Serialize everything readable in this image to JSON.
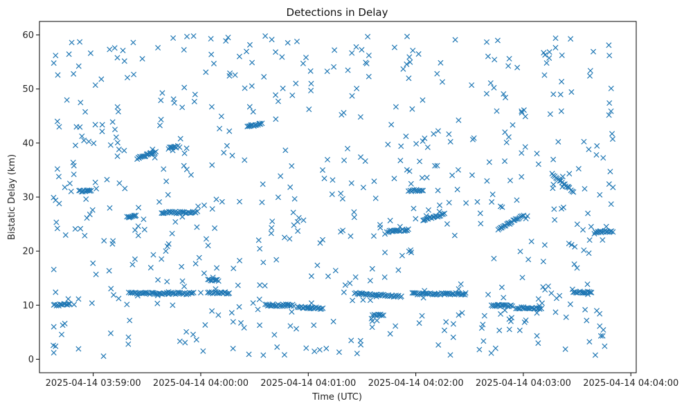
{
  "chart_data": {
    "type": "scatter",
    "title": "Detections in Delay",
    "xlabel": "Time (UTC)",
    "ylabel": "Bistatic Delay (km)",
    "marker": "x",
    "color": "#1f77b4",
    "grid": false,
    "xlim_seconds": [
      -30,
      303
    ],
    "ylim": [
      -2.5,
      62.5
    ],
    "x_ticks": [
      {
        "s": 0,
        "label": "2025-04-14 03:59:00"
      },
      {
        "s": 60,
        "label": "2025-04-14 04:00:00"
      },
      {
        "s": 120,
        "label": "2025-04-14 04:01:00"
      },
      {
        "s": 180,
        "label": "2025-04-14 04:02:00"
      },
      {
        "s": 240,
        "label": "2025-04-14 04:03:00"
      },
      {
        "s": 300,
        "label": "2025-04-14 04:04:00"
      }
    ],
    "y_ticks": [
      0,
      10,
      20,
      30,
      40,
      50,
      60
    ],
    "x_unit": "seconds since 2025-04-14 03:59:00 UTC",
    "x_range_seconds": [
      -23,
      290
    ],
    "points_sample": [
      {
        "x": -22,
        "y": 54.8
      },
      {
        "x": -21,
        "y": 56.2
      },
      {
        "x": -20,
        "y": 44.0
      },
      {
        "x": -19,
        "y": 43.0
      },
      {
        "x": -20,
        "y": 35.2
      },
      {
        "x": -19,
        "y": 28.8
      },
      {
        "x": -20,
        "y": 24.2
      },
      {
        "x": -22,
        "y": 16.6
      },
      {
        "x": -21,
        "y": 12.4
      },
      {
        "x": -22,
        "y": 6.0
      },
      {
        "x": -21,
        "y": 2.4
      },
      {
        "x": -22,
        "y": 1.2
      },
      {
        "x": -12,
        "y": 58.6
      },
      {
        "x": -11,
        "y": 52.8
      },
      {
        "x": -6,
        "y": 31.1
      },
      {
        "x": -3,
        "y": 31.2
      },
      {
        "x": 12,
        "y": 57.6
      },
      {
        "x": 14,
        "y": 45.8
      },
      {
        "x": 20,
        "y": 26.2
      },
      {
        "x": 23,
        "y": 26.6
      },
      {
        "x": 26,
        "y": 37.5
      },
      {
        "x": 30,
        "y": 38.0
      },
      {
        "x": 32,
        "y": 38.2
      },
      {
        "x": 28,
        "y": 12.2
      },
      {
        "x": 36,
        "y": 11.8
      },
      {
        "x": 44,
        "y": 39.2
      },
      {
        "x": 48,
        "y": 27.0
      },
      {
        "x": 52,
        "y": 12.0
      },
      {
        "x": 56,
        "y": 59.8
      },
      {
        "x": 60,
        "y": 12.3
      },
      {
        "x": 68,
        "y": 14.6
      },
      {
        "x": 74,
        "y": 58.9
      },
      {
        "x": 88,
        "y": 43.2
      },
      {
        "x": 93,
        "y": 43.6
      },
      {
        "x": 96,
        "y": 59.8
      },
      {
        "x": 100,
        "y": 10.0
      },
      {
        "x": 120,
        "y": 9.6
      },
      {
        "x": 128,
        "y": 35.0
      },
      {
        "x": 140,
        "y": 36.8
      },
      {
        "x": 150,
        "y": 12.1
      },
      {
        "x": 158,
        "y": 11.6
      },
      {
        "x": 160,
        "y": 8.2
      },
      {
        "x": 168,
        "y": 23.8
      },
      {
        "x": 180,
        "y": 31.2
      },
      {
        "x": 190,
        "y": 26.3
      },
      {
        "x": 196,
        "y": 12.0
      },
      {
        "x": 202,
        "y": 59.1
      },
      {
        "x": 216,
        "y": 27.0
      },
      {
        "x": 226,
        "y": 10.0
      },
      {
        "x": 232,
        "y": 25.2
      },
      {
        "x": 240,
        "y": 9.5
      },
      {
        "x": 258,
        "y": 59.4
      },
      {
        "x": 262,
        "y": 33.8
      },
      {
        "x": 274,
        "y": 12.4
      },
      {
        "x": 283,
        "y": 23.6
      },
      {
        "x": 288,
        "y": 56.2
      },
      {
        "x": 289,
        "y": 50.1
      },
      {
        "x": 288,
        "y": 47.4
      },
      {
        "x": 290,
        "y": 31.8
      },
      {
        "x": 289,
        "y": 28.7
      }
    ],
    "tracks": [
      {
        "x0": -22,
        "x1": -13,
        "y0": 10.0,
        "y1": 10.2
      },
      {
        "x0": -8,
        "x1": -1,
        "y0": 31.1,
        "y1": 31.3
      },
      {
        "x0": 19,
        "x1": 24,
        "y0": 26.2,
        "y1": 26.6
      },
      {
        "x0": 25,
        "x1": 35,
        "y0": 37.3,
        "y1": 38.3
      },
      {
        "x0": 20,
        "x1": 56,
        "y0": 12.2,
        "y1": 12.2
      },
      {
        "x0": 38,
        "x1": 58,
        "y0": 27.1,
        "y1": 27.2
      },
      {
        "x0": 42,
        "x1": 48,
        "y0": 39.0,
        "y1": 39.4
      },
      {
        "x0": 64,
        "x1": 70,
        "y0": 14.6,
        "y1": 14.6
      },
      {
        "x0": 64,
        "x1": 76,
        "y0": 12.3,
        "y1": 12.3
      },
      {
        "x0": 86,
        "x1": 94,
        "y0": 43.0,
        "y1": 43.7
      },
      {
        "x0": 96,
        "x1": 112,
        "y0": 10.0,
        "y1": 10.0
      },
      {
        "x0": 114,
        "x1": 128,
        "y0": 9.6,
        "y1": 9.4
      },
      {
        "x0": 146,
        "x1": 172,
        "y0": 12.2,
        "y1": 11.6
      },
      {
        "x0": 156,
        "x1": 162,
        "y0": 8.2,
        "y1": 8.2
      },
      {
        "x0": 164,
        "x1": 176,
        "y0": 23.6,
        "y1": 24.0
      },
      {
        "x0": 176,
        "x1": 184,
        "y0": 31.2,
        "y1": 31.2
      },
      {
        "x0": 184,
        "x1": 196,
        "y0": 25.8,
        "y1": 26.8
      },
      {
        "x0": 178,
        "x1": 208,
        "y0": 12.1,
        "y1": 12.1
      },
      {
        "x0": 222,
        "x1": 234,
        "y0": 10.0,
        "y1": 9.8
      },
      {
        "x0": 226,
        "x1": 240,
        "y0": 24.0,
        "y1": 26.6
      },
      {
        "x0": 236,
        "x1": 250,
        "y0": 9.5,
        "y1": 9.4
      },
      {
        "x0": 256,
        "x1": 268,
        "y0": 34.2,
        "y1": 31.0
      },
      {
        "x0": 268,
        "x1": 278,
        "y0": 12.4,
        "y1": 12.4
      },
      {
        "x0": 280,
        "x1": 290,
        "y0": 23.6,
        "y1": 23.6
      }
    ],
    "background_scatter": {
      "count": 560,
      "x_range": [
        -23,
        290
      ],
      "y_range": [
        0.5,
        60
      ]
    }
  }
}
